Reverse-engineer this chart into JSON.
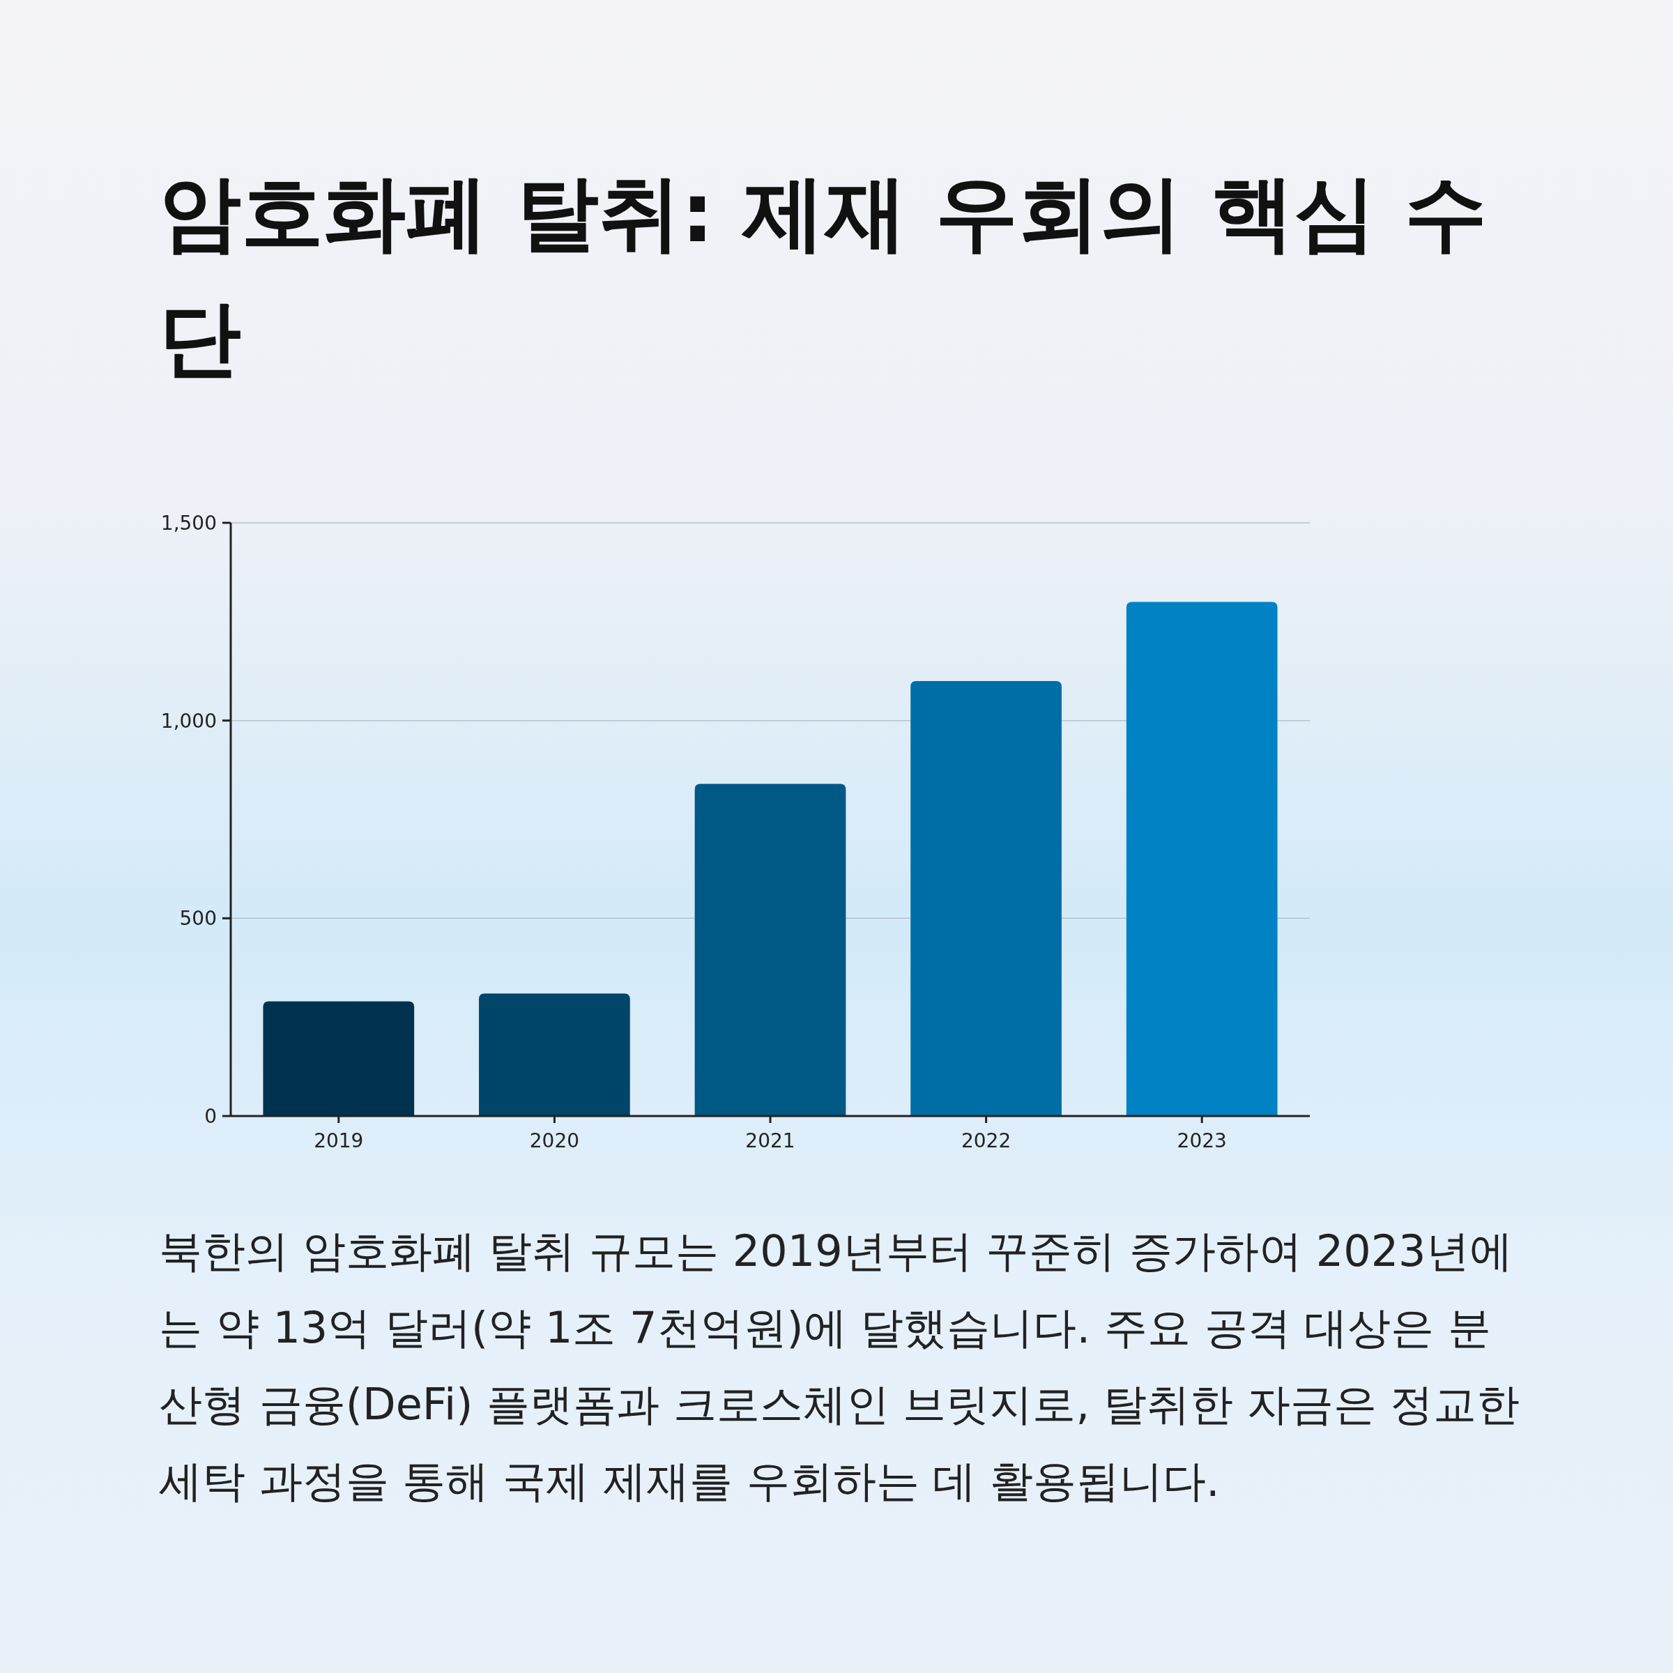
{
  "chart_data": {
    "type": "bar",
    "title": "암호화폐 탈취: 제재 우회의 핵심 수단",
    "categories": [
      "2019",
      "2020",
      "2021",
      "2022",
      "2023"
    ],
    "values": [
      290,
      310,
      840,
      1100,
      1300
    ],
    "colors": [
      "#00324f",
      "#00466b",
      "#005885",
      "#006ea6",
      "#0082c4"
    ],
    "ylim": [
      0,
      1500
    ],
    "yticks": [
      0,
      500,
      {
        "value": 1000,
        "label": "1,000"
      },
      {
        "value": 1500,
        "label": "1,500"
      }
    ],
    "grid": "y",
    "annotations": [
      "북한의 암호화폐 탈취 규모는 2019년부터 꾸준히 증가하여 2023년에는 약 13억 달러(약 1조 7천억원)에 달했습니다. 주요 공격 대상은 분산형 금융(DeFi) 플랫폼과 크로스체인 브릿지로, 탈취한 자금은 정교한 세탁 과정을 통해 국제 제재를 우회하는 데 활용됩니다."
    ]
  }
}
